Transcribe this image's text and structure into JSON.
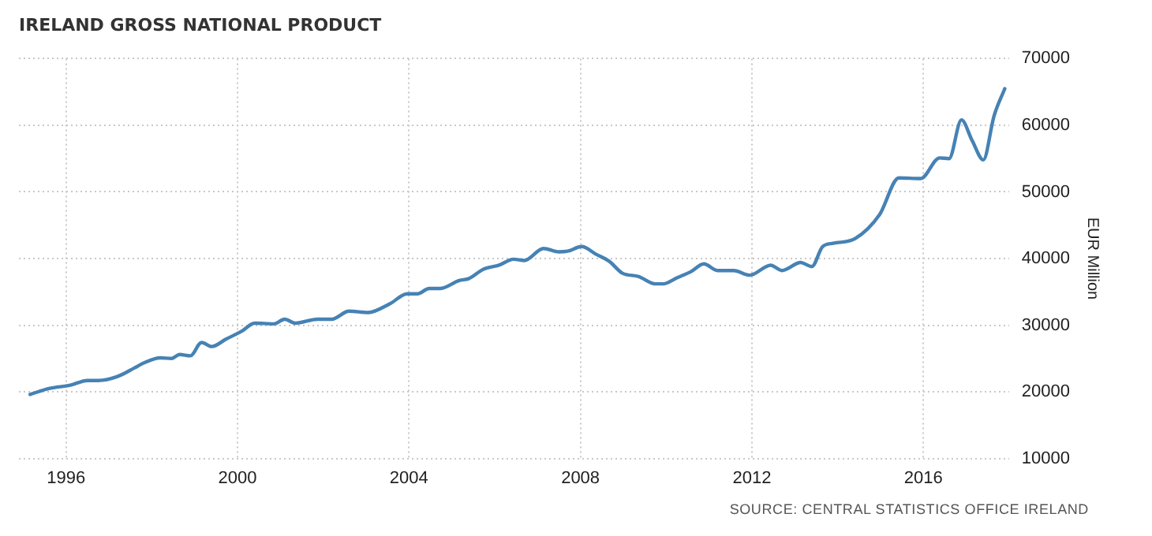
{
  "chart_data": {
    "type": "line",
    "title": "IRELAND GROSS NATIONAL PRODUCT",
    "ylabel": "EUR Million",
    "annotations": [
      "SOURCE: CENTRAL STATISTICS OFFICE IRELAND"
    ],
    "xlim": [
      1994.9,
      2018.0
    ],
    "xticks": [
      1996,
      2000,
      2004,
      2008,
      2012,
      2016
    ],
    "ylim": [
      10000,
      70000
    ],
    "yticks": [
      10000,
      20000,
      30000,
      40000,
      50000,
      60000,
      70000
    ],
    "grid": true,
    "legend": false,
    "marker": "none",
    "line_style": "solid",
    "series": [
      {
        "color": "#4682b4",
        "x": [
          1995.16,
          1995.6,
          1996.1,
          1996.5,
          1996.75,
          1997.2,
          1997.6,
          1997.8,
          1998.2,
          1998.46,
          1998.65,
          1998.9,
          1999.16,
          1999.4,
          1999.73,
          2000.1,
          2000.4,
          2000.85,
          2001.1,
          2001.35,
          2001.86,
          2002.2,
          2002.6,
          2003.05,
          2003.55,
          2003.96,
          2004.2,
          2004.47,
          2004.72,
          2005.17,
          2005.4,
          2005.74,
          2006.1,
          2006.44,
          2006.69,
          2007.14,
          2007.5,
          2007.7,
          2008.03,
          2008.35,
          2008.67,
          2008.98,
          2009.36,
          2009.74,
          2009.93,
          2010.25,
          2010.57,
          2010.88,
          2011.2,
          2011.58,
          2011.95,
          2012.44,
          2012.7,
          2013.14,
          2013.4,
          2013.65,
          2013.9,
          2014.41,
          2014.98,
          2015.43,
          2015.94,
          2016.38,
          2016.6,
          2016.89,
          2017.14,
          2017.4,
          2017.65,
          2017.9
        ],
        "values": [
          19600,
          20500,
          21000,
          21700,
          21700,
          22300,
          23600,
          24300,
          25100,
          25000,
          25600,
          25400,
          27400,
          26800,
          27900,
          29100,
          30300,
          30200,
          30900,
          30300,
          30900,
          30900,
          32100,
          31900,
          33200,
          34700,
          34700,
          35500,
          35500,
          36700,
          37000,
          38400,
          39000,
          39900,
          39700,
          41500,
          41000,
          41100,
          41800,
          40700,
          39600,
          37800,
          37300,
          36200,
          36200,
          37100,
          38000,
          39200,
          38200,
          38200,
          37500,
          39000,
          38200,
          39400,
          38800,
          41800,
          42300,
          43000,
          46600,
          52100,
          52000,
          55100,
          55000,
          60800,
          57700,
          54800,
          61400,
          65500
        ]
      }
    ]
  }
}
